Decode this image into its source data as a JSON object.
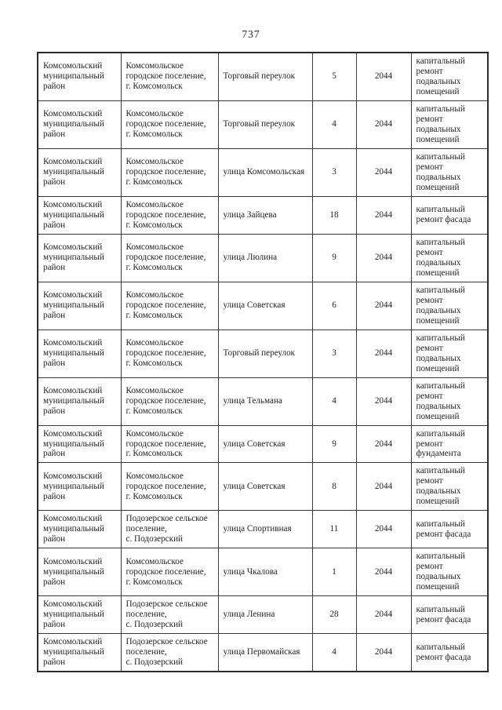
{
  "page": {
    "number": "737"
  },
  "table": {
    "rows": [
      {
        "district": "Комсомольский\nмуниципальный\nрайон",
        "settlement": "Комсомольское\nгородское поселение,\nг. Комсомольск",
        "street": "Торговый переулок",
        "house": "5",
        "year": "2044",
        "work": "капитальный\nремонт\nподвальных\nпомещений"
      },
      {
        "district": "Комсомольский\nмуниципальный\nрайон",
        "settlement": "Комсомольское\nгородское поселение,\nг. Комсомольск",
        "street": "Торговый переулок",
        "house": "4",
        "year": "2044",
        "work": "капитальный\nремонт\nподвальных\nпомещений"
      },
      {
        "district": "Комсомольский\nмуниципальный\nрайон",
        "settlement": "Комсомольское\nгородское поселение,\nг. Комсомольск",
        "street": "улица Комсомольская",
        "house": "3",
        "year": "2044",
        "work": "капитальный\nремонт\nподвальных\nпомещений"
      },
      {
        "district": "Комсомольский\nмуниципальный\nрайон",
        "settlement": "Комсомольское\nгородское поселение,\n г. Комсомольск",
        "street": "улица  Зайцева",
        "house": "18",
        "year": "2044",
        "work": "капитальный\nремонт фасада"
      },
      {
        "district": "Комсомольский\nмуниципальный\nрайон",
        "settlement": "Комсомольское\nгородское поселение,\nг. Комсомольск",
        "street": "улица Люлина",
        "house": "9",
        "year": "2044",
        "work": "капитальный\nремонт\nподвальных\nпомещений"
      },
      {
        "district": "Комсомольский\nмуниципальный\nрайон",
        "settlement": "Комсомольское\nгородское поселение,\nг. Комсомольск",
        "street": "улица  Советская",
        "house": "6",
        "year": "2044",
        "work": "капитальный\nремонт\nподвальных\nпомещений"
      },
      {
        "district": "Комсомольский\nмуниципальный\nрайон",
        "settlement": "Комсомольское\nгородское поселение,\nг. Комсомольск",
        "street": "Торговый переулок",
        "house": "3",
        "year": "2044",
        "work": "капитальный\nремонт\nподвальных\nпомещений"
      },
      {
        "district": "Комсомольский\nмуниципальный\nрайон",
        "settlement": "Комсомольское\nгородское поселение,\nг. Комсомольск",
        "street": "улица Тельмана",
        "house": "4",
        "year": "2044",
        "work": "капитальный\nремонт\nподвальных\nпомещений"
      },
      {
        "district": "Комсомольский\nмуниципальный\nрайон",
        "settlement": "Комсомольское\nгородское поселение,\nг. Комсомольск",
        "street": "улица  Советская",
        "house": "9",
        "year": "2044",
        "work": "капитальный\nремонт\nфундамента"
      },
      {
        "district": "Комсомольский\nмуниципальный\nрайон",
        "settlement": "Комсомольское\nгородское поселение,\nг. Комсомольск",
        "street": "улица  Советская",
        "house": "8",
        "year": "2044",
        "work": "капитальный\nремонт\nподвальных\nпомещений"
      },
      {
        "district": "Комсомольский\nмуниципальный\nрайон",
        "settlement": "Подозерское сельское\nпоселение,\nс. Подозерский",
        "street": "улица Спортивная",
        "house": "11",
        "year": "2044",
        "work": "капитальный\nремонт фасада"
      },
      {
        "district": "Комсомольский\nмуниципальный\nрайон",
        "settlement": "Комсомольское\nгородское поселение,\nг. Комсомольск",
        "street": "улица  Чкалова",
        "house": "1",
        "year": "2044",
        "work": "капитальный\nремонт\nподвальных\nпомещений"
      },
      {
        "district": "Комсомольский\nмуниципальный\nрайон",
        "settlement": "Подозерское сельское\nпоселение,\nс. Подозерский",
        "street": "улица Ленина",
        "house": "28",
        "year": "2044",
        "work": "капитальный\nремонт фасада"
      },
      {
        "district": "Комсомольский\nмуниципальный\nрайон",
        "settlement": "Подозерское сельское\nпоселение,\nс. Подозерский",
        "street": "улица Первомайская",
        "house": "4",
        "year": "2044",
        "work": "капитальный\nремонт фасада"
      }
    ]
  }
}
